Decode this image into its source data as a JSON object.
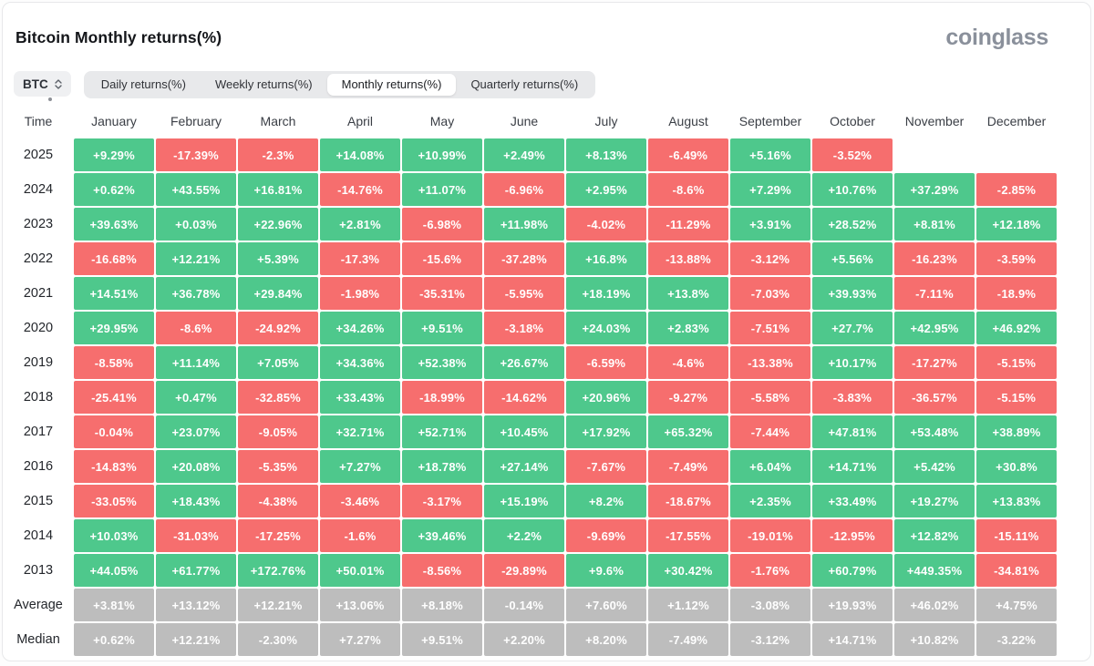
{
  "title": "Bitcoin Monthly returns(%)",
  "logo_text": "coinglass",
  "controls": {
    "symbol_select": {
      "value": "BTC",
      "icon": "up-down-chevrons"
    },
    "tabs": [
      {
        "label": "Daily returns(%)",
        "active": false
      },
      {
        "label": "Weekly returns(%)",
        "active": false
      },
      {
        "label": "Monthly returns(%)",
        "active": true
      },
      {
        "label": "Quarterly returns(%)",
        "active": false
      }
    ]
  },
  "table": {
    "time_header": "Time",
    "months": [
      "January",
      "February",
      "March",
      "April",
      "May",
      "June",
      "July",
      "August",
      "September",
      "October",
      "November",
      "December"
    ],
    "rows": [
      {
        "label": "2025",
        "type": "year",
        "values": [
          "+9.29%",
          "-17.39%",
          "-2.3%",
          "+14.08%",
          "+10.99%",
          "+2.49%",
          "+8.13%",
          "-6.49%",
          "+5.16%",
          "-3.52%",
          null,
          null
        ]
      },
      {
        "label": "2024",
        "type": "year",
        "values": [
          "+0.62%",
          "+43.55%",
          "+16.81%",
          "-14.76%",
          "+11.07%",
          "-6.96%",
          "+2.95%",
          "-8.6%",
          "+7.29%",
          "+10.76%",
          "+37.29%",
          "-2.85%"
        ]
      },
      {
        "label": "2023",
        "type": "year",
        "values": [
          "+39.63%",
          "+0.03%",
          "+22.96%",
          "+2.81%",
          "-6.98%",
          "+11.98%",
          "-4.02%",
          "-11.29%",
          "+3.91%",
          "+28.52%",
          "+8.81%",
          "+12.18%"
        ]
      },
      {
        "label": "2022",
        "type": "year",
        "values": [
          "-16.68%",
          "+12.21%",
          "+5.39%",
          "-17.3%",
          "-15.6%",
          "-37.28%",
          "+16.8%",
          "-13.88%",
          "-3.12%",
          "+5.56%",
          "-16.23%",
          "-3.59%"
        ]
      },
      {
        "label": "2021",
        "type": "year",
        "values": [
          "+14.51%",
          "+36.78%",
          "+29.84%",
          "-1.98%",
          "-35.31%",
          "-5.95%",
          "+18.19%",
          "+13.8%",
          "-7.03%",
          "+39.93%",
          "-7.11%",
          "-18.9%"
        ]
      },
      {
        "label": "2020",
        "type": "year",
        "values": [
          "+29.95%",
          "-8.6%",
          "-24.92%",
          "+34.26%",
          "+9.51%",
          "-3.18%",
          "+24.03%",
          "+2.83%",
          "-7.51%",
          "+27.7%",
          "+42.95%",
          "+46.92%"
        ]
      },
      {
        "label": "2019",
        "type": "year",
        "values": [
          "-8.58%",
          "+11.14%",
          "+7.05%",
          "+34.36%",
          "+52.38%",
          "+26.67%",
          "-6.59%",
          "-4.6%",
          "-13.38%",
          "+10.17%",
          "-17.27%",
          "-5.15%"
        ]
      },
      {
        "label": "2018",
        "type": "year",
        "values": [
          "-25.41%",
          "+0.47%",
          "-32.85%",
          "+33.43%",
          "-18.99%",
          "-14.62%",
          "+20.96%",
          "-9.27%",
          "-5.58%",
          "-3.83%",
          "-36.57%",
          "-5.15%"
        ]
      },
      {
        "label": "2017",
        "type": "year",
        "values": [
          "-0.04%",
          "+23.07%",
          "-9.05%",
          "+32.71%",
          "+52.71%",
          "+10.45%",
          "+17.92%",
          "+65.32%",
          "-7.44%",
          "+47.81%",
          "+53.48%",
          "+38.89%"
        ]
      },
      {
        "label": "2016",
        "type": "year",
        "values": [
          "-14.83%",
          "+20.08%",
          "-5.35%",
          "+7.27%",
          "+18.78%",
          "+27.14%",
          "-7.67%",
          "-7.49%",
          "+6.04%",
          "+14.71%",
          "+5.42%",
          "+30.8%"
        ]
      },
      {
        "label": "2015",
        "type": "year",
        "values": [
          "-33.05%",
          "+18.43%",
          "-4.38%",
          "-3.46%",
          "-3.17%",
          "+15.19%",
          "+8.2%",
          "-18.67%",
          "+2.35%",
          "+33.49%",
          "+19.27%",
          "+13.83%"
        ]
      },
      {
        "label": "2014",
        "type": "year",
        "values": [
          "+10.03%",
          "-31.03%",
          "-17.25%",
          "-1.6%",
          "+39.46%",
          "+2.2%",
          "-9.69%",
          "-17.55%",
          "-19.01%",
          "-12.95%",
          "+12.82%",
          "-15.11%"
        ]
      },
      {
        "label": "2013",
        "type": "year",
        "values": [
          "+44.05%",
          "+61.77%",
          "+172.76%",
          "+50.01%",
          "-8.56%",
          "-29.89%",
          "+9.6%",
          "+30.42%",
          "-1.76%",
          "+60.79%",
          "+449.35%",
          "-34.81%"
        ]
      },
      {
        "label": "Average",
        "type": "summary",
        "values": [
          "+3.81%",
          "+13.12%",
          "+12.21%",
          "+13.06%",
          "+8.18%",
          "-0.14%",
          "+7.60%",
          "+1.12%",
          "-3.08%",
          "+19.93%",
          "+46.02%",
          "+4.75%"
        ]
      },
      {
        "label": "Median",
        "type": "summary",
        "values": [
          "+0.62%",
          "+12.21%",
          "-2.30%",
          "+7.27%",
          "+9.51%",
          "+2.20%",
          "+8.20%",
          "-7.49%",
          "-3.12%",
          "+14.71%",
          "+10.82%",
          "-3.22%"
        ]
      }
    ]
  },
  "colors": {
    "positive": "#4ec88c",
    "negative": "#f66e6e",
    "summary": "#bdbdbd",
    "tabs_bar_bg": "#e8e9eb",
    "active_tab_bg": "#ffffff",
    "logo_gray": "#8a909b"
  }
}
